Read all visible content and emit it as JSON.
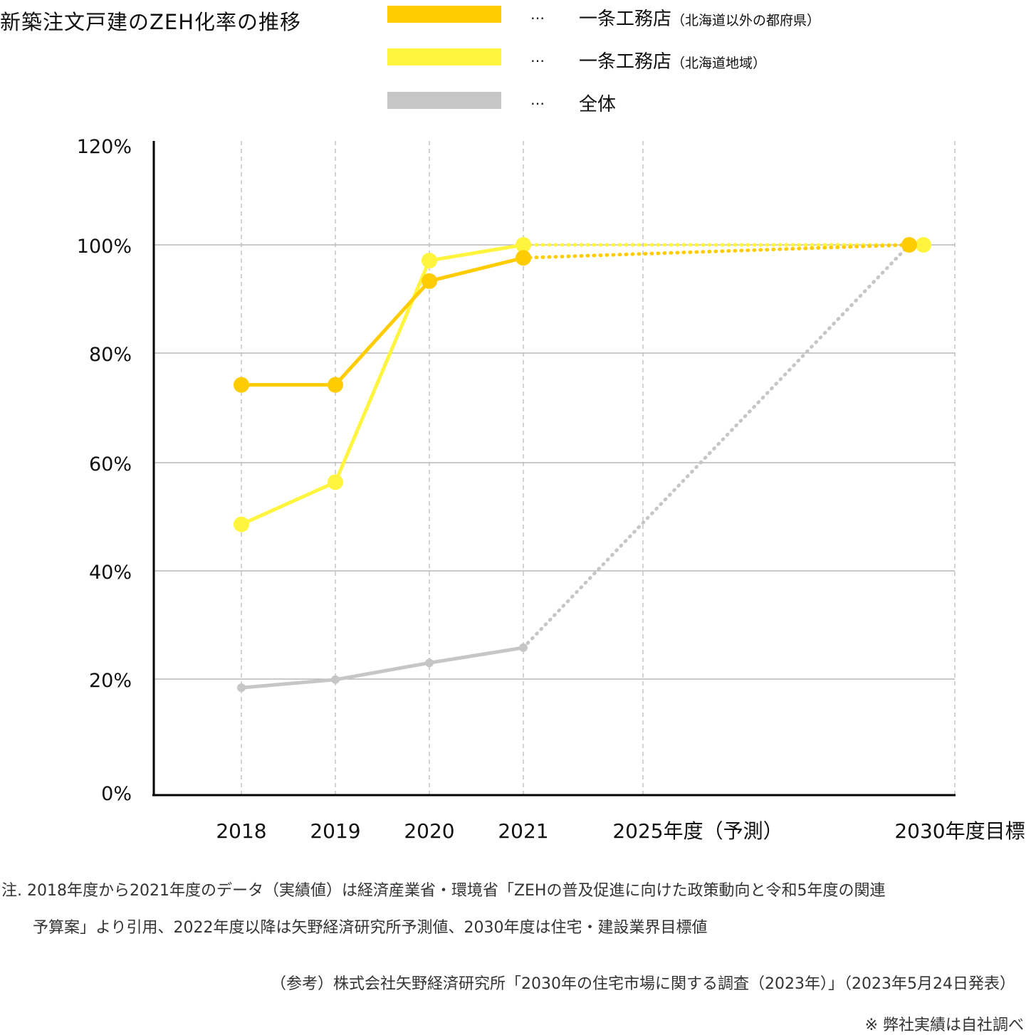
{
  "title": "新築注文戸建のZEH化率の推移",
  "legend": [
    {
      "swatch_color": "#FFCC00",
      "dots": "…",
      "label": "一条工務店",
      "sub": "（北海道以外の都府県）"
    },
    {
      "swatch_color": "#FFF53F",
      "dots": "…",
      "label": "一条工務店",
      "sub": "（北海道地域）"
    },
    {
      "swatch_color": "#C6C6C6",
      "dots": "…",
      "label": "全体",
      "sub": ""
    }
  ],
  "chart_data": {
    "type": "line",
    "title": "新築注文戸建のZEH化率の推移",
    "categories": [
      "2018",
      "2019",
      "2020",
      "2021",
      "2025年度（予測）",
      "2030年度目標"
    ],
    "y_ticks": [
      "0%",
      "20%",
      "40%",
      "60%",
      "80%",
      "100%",
      "120%"
    ],
    "ylim": [
      0,
      120
    ],
    "grid": true,
    "series": [
      {
        "name": "一条工務店（北海道以外の都府県）",
        "color": "#FFCC00",
        "x": [
          "2018",
          "2019",
          "2020",
          "2021",
          "2030年度目標"
        ],
        "values": [
          74.2,
          74.2,
          93.3,
          97.6,
          100
        ],
        "forecast_from": "2021"
      },
      {
        "name": "一条工務店（北海道地域）",
        "color": "#FFF53F",
        "x": [
          "2018",
          "2019",
          "2020",
          "2021",
          "2030年度目標"
        ],
        "values": [
          48.6,
          56.4,
          97.1,
          100,
          100
        ],
        "forecast_from": "2021"
      },
      {
        "name": "全体",
        "color": "#C6C6C6",
        "x": [
          "2018",
          "2019",
          "2020",
          "2021",
          "2030年度目標"
        ],
        "values": [
          18.5,
          19.9,
          23.0,
          25.8,
          100
        ],
        "forecast_from": "2021"
      }
    ]
  },
  "notes": {
    "line1": "注. 2018年度から2021年度のデータ（実績値）は経済産業省・環境省「ZEHの普及促進に向けた政策動向と令和5年度の関連",
    "line2": "予算案」より引用、2022年度以降は矢野経済研究所予測値、2030年度は住宅・建設業界目標値",
    "reference": "（参考）株式会社矢野経済研究所「2030年の住宅市場に関する調査（2023年）」（2023年5月24日発表）",
    "own": "※ 弊社実績は自社調べ"
  }
}
